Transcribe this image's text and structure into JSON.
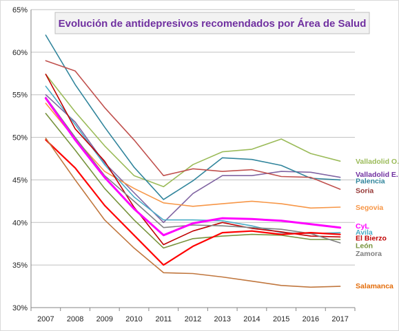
{
  "chart_data": {
    "type": "line",
    "title": "Evolución de antidepresivos recomendados por Área de Salud",
    "xlabel": "",
    "ylabel": "",
    "x": [
      "2007",
      "2008",
      "2009",
      "2010",
      "2011",
      "2012",
      "2013",
      "2014",
      "2015",
      "2016",
      "2017"
    ],
    "ylim": [
      30,
      65
    ],
    "yticks": [
      "30%",
      "35%",
      "40%",
      "45%",
      "50%",
      "55%",
      "60%",
      "65%"
    ],
    "grid": true,
    "legend": "labels at line ends (right)",
    "series": [
      {
        "name": "Valladolid O.",
        "color": "#9bbb59",
        "width": 1.6,
        "values": [
          57.4,
          53.0,
          49.0,
          45.5,
          44.2,
          46.8,
          48.3,
          48.6,
          49.8,
          48.1,
          47.2
        ]
      },
      {
        "name": "Valladolid E.",
        "color": "#8064a2",
        "width": 1.6,
        "values": [
          55.0,
          51.8,
          47.0,
          43.5,
          40.0,
          43.4,
          45.5,
          45.5,
          46.0,
          45.9,
          45.3
        ]
      },
      {
        "name": "Palencia",
        "color": "#31859c",
        "width": 1.6,
        "values": [
          62.0,
          56.2,
          51.2,
          46.5,
          42.7,
          44.9,
          47.6,
          47.4,
          46.7,
          45.2,
          45.0
        ]
      },
      {
        "name": "Soria",
        "color": "#c0504d",
        "width": 1.6,
        "values": [
          59.0,
          57.8,
          53.5,
          49.7,
          45.5,
          46.3,
          46.0,
          46.2,
          45.4,
          45.3,
          43.9
        ]
      },
      {
        "name": "Segovia",
        "color": "#f79646",
        "width": 1.6,
        "values": [
          54.0,
          49.8,
          46.0,
          44.0,
          42.3,
          41.9,
          42.2,
          42.5,
          42.2,
          41.7,
          41.8
        ]
      },
      {
        "name": "CyL",
        "color": "#ff00ff",
        "width": 3,
        "values": [
          54.6,
          49.7,
          45.3,
          41.6,
          38.5,
          39.9,
          40.5,
          40.4,
          40.2,
          39.8,
          39.4
        ]
      },
      {
        "name": "Avila",
        "color": "#4bacc6",
        "width": 1.6,
        "values": [
          56.0,
          51.5,
          46.8,
          43.0,
          40.3,
          40.3,
          40.2,
          39.6,
          38.8,
          38.7,
          38.8
        ]
      },
      {
        "name": "El Bierzo",
        "color": "#c00000",
        "width": 1.6,
        "values": [
          57.4,
          51.0,
          47.2,
          41.8,
          37.4,
          39.0,
          40.0,
          39.3,
          38.9,
          38.4,
          38.3
        ]
      },
      {
        "name": "León",
        "color": "#77933c",
        "width": 1.6,
        "values": [
          52.8,
          48.5,
          44.0,
          40.3,
          37.0,
          38.1,
          38.4,
          38.6,
          38.5,
          38.0,
          38.0
        ]
      },
      {
        "name": "Zamora",
        "color": "#7f7f7f",
        "width": 1.6,
        "values": [
          54.7,
          50.0,
          45.5,
          42.5,
          39.4,
          39.7,
          39.6,
          39.4,
          39.2,
          38.7,
          37.6
        ]
      },
      {
        "name": "",
        "color": "#ff0000",
        "width": 2.2,
        "values": [
          49.7,
          46.4,
          42.0,
          38.5,
          35.0,
          37.2,
          38.8,
          39.0,
          38.6,
          38.8,
          38.6
        ]
      },
      {
        "name": "Salamanca",
        "color": "#c0763d",
        "width": 1.6,
        "values": [
          49.9,
          45.0,
          40.3,
          37.0,
          34.1,
          34.0,
          33.6,
          33.1,
          32.6,
          32.4,
          32.5
        ]
      }
    ],
    "labels": [
      {
        "text": "Valladolid  O.",
        "color": "#9bbb59",
        "y": 47.2
      },
      {
        "text": "Valladolid  E.",
        "color": "#7030a0",
        "y": 45.7
      },
      {
        "text": "Palencia",
        "color": "#31859c",
        "y": 44.9
      },
      {
        "text": "Soria",
        "color": "#953735",
        "y": 43.8
      },
      {
        "text": "Segovia",
        "color": "#f79646",
        "y": 41.8
      },
      {
        "text": "CyL",
        "color": "#ff00ff",
        "y": 39.6
      },
      {
        "text": "Avila",
        "color": "#4bacc6",
        "y": 38.9
      },
      {
        "text": "El Bierzo",
        "color": "#c00000",
        "y": 38.2
      },
      {
        "text": "León",
        "color": "#77933c",
        "y": 37.3
      },
      {
        "text": "Zamora",
        "color": "#7f7f7f",
        "y": 36.4
      },
      {
        "text": "Salamanca",
        "color": "#e36c09",
        "y": 32.6
      }
    ]
  }
}
